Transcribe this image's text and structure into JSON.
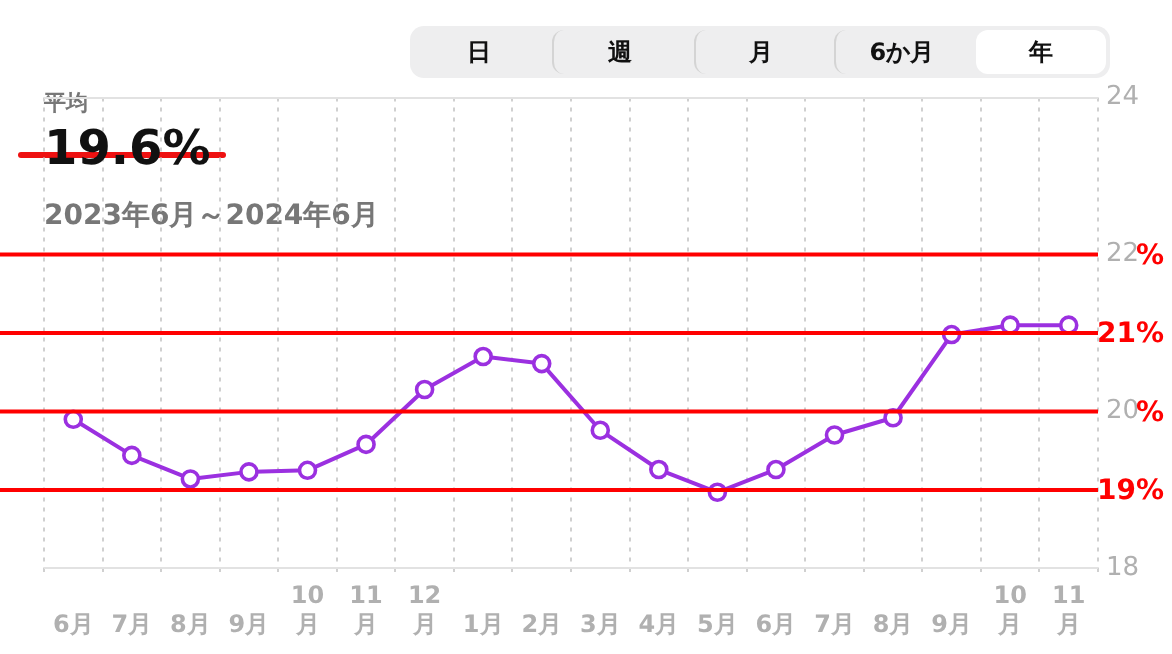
{
  "chart_data": {
    "type": "line",
    "annotations": [
      "日",
      "週",
      "月",
      "6か月",
      "年",
      "平均",
      "19.6%",
      "2023年6月～2024年6月"
    ],
    "categories": [
      "6月",
      "7月",
      "8月",
      "9月",
      "10月",
      "11月",
      "12月",
      "1月",
      "2月",
      "3月",
      "4月",
      "5月",
      "6月",
      "7月",
      "8月",
      "9月",
      "10月",
      "11月"
    ],
    "series": [
      {
        "color": "#9b30e0",
        "values": [
          19.9,
          19.44,
          19.14,
          19.23,
          19.25,
          19.58,
          20.28,
          20.7,
          20.61,
          19.76,
          19.26,
          18.97,
          19.26,
          19.7,
          19.92,
          20.98,
          21.1,
          21.1
        ]
      }
    ],
    "ylim": [
      18,
      24
    ],
    "yticks": [
      18,
      20,
      22,
      24
    ],
    "grid": true,
    "legend": false,
    "marker": "circle",
    "line_style": "solid",
    "ref_lines": [
      {
        "axis": "y",
        "value": 22,
        "label": "%",
        "color": "#ff0000"
      },
      {
        "axis": "y",
        "value": 21,
        "label": "21%",
        "color": "#ff0000"
      },
      {
        "axis": "y",
        "value": 20,
        "label": "%",
        "color": "#ff0000"
      },
      {
        "axis": "y",
        "value": 19,
        "label": "19%",
        "color": "#ff0000"
      }
    ]
  }
}
